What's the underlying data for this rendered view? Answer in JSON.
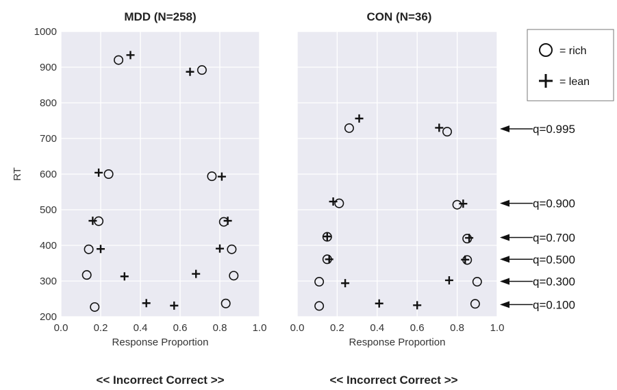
{
  "chart_data": [
    {
      "type": "scatter",
      "title": "MDD (N=258)",
      "xlabel": "Response Proportion",
      "ylabel": "RT",
      "xlim": [
        0.0,
        1.0
      ],
      "ylim": [
        200,
        1000
      ],
      "xticks": [
        "0.0",
        "0.2",
        "0.4",
        "0.6",
        "0.8",
        "1.0"
      ],
      "yticks": [
        "200",
        "300",
        "400",
        "500",
        "600",
        "700",
        "800",
        "900",
        "1000"
      ],
      "footer": "<< Incorrect Correct >>",
      "series": [
        {
          "name": "rich",
          "marker": "circle",
          "points": [
            [
              0.29,
              920
            ],
            [
              0.71,
              892
            ],
            [
              0.24,
              600
            ],
            [
              0.76,
              594
            ],
            [
              0.19,
              468
            ],
            [
              0.82,
              466
            ],
            [
              0.14,
              389
            ],
            [
              0.86,
              389
            ],
            [
              0.13,
              317
            ],
            [
              0.87,
              315
            ],
            [
              0.17,
              227
            ],
            [
              0.83,
              237
            ]
          ]
        },
        {
          "name": "lean",
          "marker": "plus",
          "points": [
            [
              0.35,
              934
            ],
            [
              0.65,
              887
            ],
            [
              0.19,
              604
            ],
            [
              0.81,
              593
            ],
            [
              0.16,
              469
            ],
            [
              0.84,
              469
            ],
            [
              0.2,
              390
            ],
            [
              0.8,
              391
            ],
            [
              0.32,
              313
            ],
            [
              0.68,
              320
            ],
            [
              0.43,
              238
            ],
            [
              0.57,
              231
            ]
          ]
        }
      ]
    },
    {
      "type": "scatter",
      "title": "CON (N=36)",
      "xlabel": "Response Proportion",
      "ylabel": "",
      "xlim": [
        0.0,
        1.0
      ],
      "ylim": [
        200,
        1000
      ],
      "xticks": [
        "0.0",
        "0.2",
        "0.4",
        "0.6",
        "0.8",
        "1.0"
      ],
      "yticks": [],
      "footer": "<< Incorrect Correct >>",
      "series": [
        {
          "name": "rich",
          "marker": "circle",
          "points": [
            [
              0.26,
              729
            ],
            [
              0.75,
              719
            ],
            [
              0.21,
              518
            ],
            [
              0.8,
              514
            ],
            [
              0.15,
              424
            ],
            [
              0.85,
              419
            ],
            [
              0.15,
              361
            ],
            [
              0.85,
              359
            ],
            [
              0.11,
              298
            ],
            [
              0.9,
              298
            ],
            [
              0.11,
              230
            ],
            [
              0.89,
              236
            ]
          ]
        },
        {
          "name": "lean",
          "marker": "plus",
          "points": [
            [
              0.31,
              756
            ],
            [
              0.71,
              730
            ],
            [
              0.18,
              523
            ],
            [
              0.83,
              517
            ],
            [
              0.15,
              425
            ],
            [
              0.86,
              421
            ],
            [
              0.16,
              361
            ],
            [
              0.84,
              360
            ],
            [
              0.24,
              294
            ],
            [
              0.76,
              302
            ],
            [
              0.41,
              237
            ],
            [
              0.6,
              232
            ]
          ]
        }
      ]
    }
  ],
  "legend": {
    "items": [
      {
        "marker": "circle",
        "label": "= rich"
      },
      {
        "marker": "plus",
        "label": "= lean"
      }
    ]
  },
  "annotations": [
    {
      "label": "q=0.995",
      "y": 727
    },
    {
      "label": "q=0.900",
      "y": 518
    },
    {
      "label": "q=0.700",
      "y": 422
    },
    {
      "label": "q=0.500",
      "y": 361
    },
    {
      "label": "q=0.300",
      "y": 299
    },
    {
      "label": "q=0.100",
      "y": 234
    }
  ],
  "colors": {
    "plot_bg": "#eaeaf2",
    "grid": "#ffffff",
    "marker": "#111111"
  }
}
